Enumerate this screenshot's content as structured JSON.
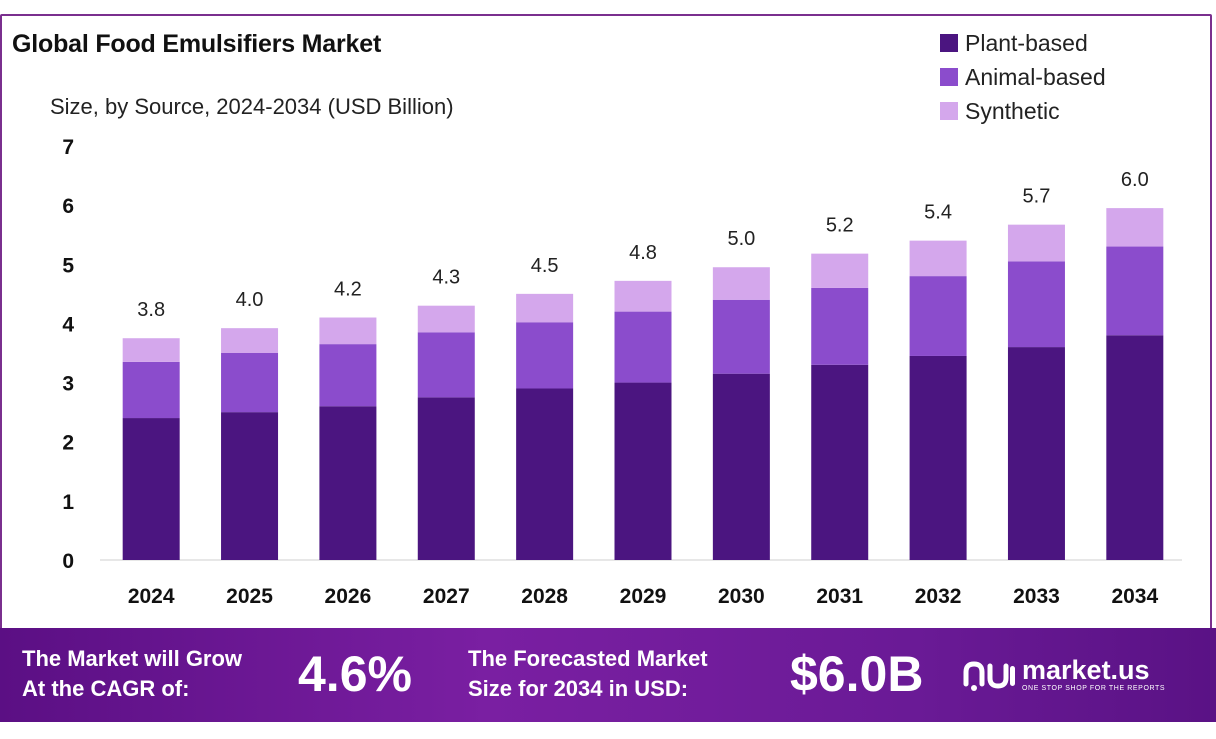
{
  "header": {
    "title": "Global Food Emulsifiers Market",
    "subtitle": "Size, by Source, 2024-2034 (USD Billion)"
  },
  "legend": [
    {
      "label": "Plant-based",
      "color": "#4b1580"
    },
    {
      "label": "Animal-based",
      "color": "#8b4ccc"
    },
    {
      "label": "Synthetic",
      "color": "#d4a7ec"
    }
  ],
  "chart_data": {
    "type": "bar",
    "stacked": true,
    "categories": [
      "2024",
      "2025",
      "2026",
      "2027",
      "2028",
      "2029",
      "2030",
      "2031",
      "2032",
      "2033",
      "2034"
    ],
    "series": [
      {
        "name": "Plant-based",
        "values": [
          2.4,
          2.5,
          2.6,
          2.75,
          2.9,
          3.0,
          3.15,
          3.3,
          3.45,
          3.6,
          3.8
        ],
        "color": "#4b1580"
      },
      {
        "name": "Animal-based",
        "values": [
          0.95,
          1.0,
          1.05,
          1.1,
          1.12,
          1.2,
          1.25,
          1.3,
          1.35,
          1.45,
          1.5
        ],
        "color": "#8b4ccc"
      },
      {
        "name": "Synthetic",
        "values": [
          0.4,
          0.42,
          0.45,
          0.45,
          0.48,
          0.52,
          0.55,
          0.58,
          0.6,
          0.62,
          0.65
        ],
        "color": "#d4a7ec"
      }
    ],
    "totals": [
      "3.8",
      "4.0",
      "4.2",
      "4.3",
      "4.5",
      "4.8",
      "5.0",
      "5.2",
      "5.4",
      "5.7",
      "6.0"
    ],
    "yticks": [
      "0",
      "1",
      "2",
      "3",
      "4",
      "5",
      "6",
      "7"
    ],
    "ylim": [
      0,
      7
    ],
    "grid": false,
    "legend_position": "top-right"
  },
  "footer": {
    "cagr_line1": "The Market will Grow",
    "cagr_line2": "At the CAGR of:",
    "cagr_value": "4.6%",
    "forecast_line1": "The Forecasted Market",
    "forecast_line2": "Size for 2034 in USD:",
    "forecast_value": "$6.0B",
    "brand_name": "market.us",
    "brand_tagline": "ONE STOP SHOP FOR THE REPORTS"
  }
}
